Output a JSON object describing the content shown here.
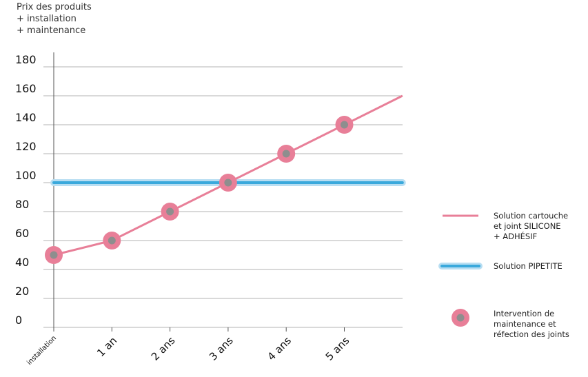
{
  "chart_data": {
    "type": "line",
    "ylabel_lines": [
      "Prix des produits",
      "+ installation",
      "+ maintenance"
    ],
    "categories": [
      "installation",
      "1 an",
      "2 ans",
      "3 ans",
      "4 ans",
      "5 ans"
    ],
    "yticks": [
      0,
      20,
      40,
      60,
      80,
      100,
      120,
      140,
      160,
      180
    ],
    "ylim": [
      0,
      190
    ],
    "grid": true,
    "series": [
      {
        "legend_lines": [
          "Solution cartouche",
          "et joint SILICONE",
          "+ ADHÉSIF"
        ],
        "color": "#e87f98",
        "x": [
          0,
          1,
          2,
          3,
          4,
          5,
          6
        ],
        "values": [
          50,
          60,
          80,
          100,
          120,
          140,
          160
        ]
      },
      {
        "legend_lines": [
          "Solution PIPETITE"
        ],
        "color": "#3aa9dc",
        "glow_color": "#b8def2",
        "x": [
          0,
          6
        ],
        "values": [
          100,
          100
        ]
      }
    ],
    "markers": {
      "legend_lines": [
        "Intervention de",
        "maintenance et",
        "réfection des joints"
      ],
      "outer_color": "#e87f98",
      "inner_color": "#8e8e8e",
      "x": [
        0,
        1,
        2,
        3,
        4,
        5
      ],
      "values": [
        50,
        60,
        80,
        100,
        120,
        140
      ]
    },
    "legend_position": "right"
  }
}
